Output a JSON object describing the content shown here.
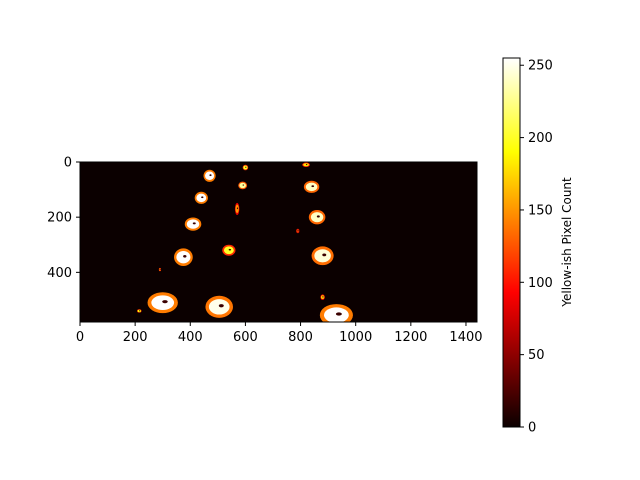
{
  "chart_data": {
    "type": "heatmap",
    "title": "",
    "xlabel": "",
    "ylabel": "",
    "xlim": [
      0,
      1440
    ],
    "ylim": [
      580,
      0
    ],
    "x_ticks": [
      "0",
      "200",
      "400",
      "600",
      "800",
      "1000",
      "1200",
      "1400"
    ],
    "y_ticks": [
      "0",
      "200",
      "400"
    ],
    "colormap": "hot",
    "background_color": "#0b0000",
    "colorbar": {
      "label": "Yellow-ish Pixel Count",
      "range": [
        0,
        255
      ],
      "ticks": [
        "0",
        "50",
        "100",
        "150",
        "200",
        "250"
      ]
    },
    "blobs": [
      {
        "x": 600,
        "y": 20,
        "rx": 10,
        "ry": 10,
        "value": 200
      },
      {
        "x": 820,
        "y": 10,
        "rx": 14,
        "ry": 8,
        "value": 180
      },
      {
        "x": 470,
        "y": 50,
        "rx": 22,
        "ry": 22,
        "value": 255
      },
      {
        "x": 590,
        "y": 85,
        "rx": 16,
        "ry": 14,
        "value": 230
      },
      {
        "x": 840,
        "y": 90,
        "rx": 28,
        "ry": 22,
        "value": 240
      },
      {
        "x": 440,
        "y": 130,
        "rx": 24,
        "ry": 22,
        "value": 255
      },
      {
        "x": 570,
        "y": 170,
        "rx": 8,
        "ry": 22,
        "value": 150
      },
      {
        "x": 860,
        "y": 200,
        "rx": 30,
        "ry": 26,
        "value": 240
      },
      {
        "x": 410,
        "y": 225,
        "rx": 30,
        "ry": 24,
        "value": 255
      },
      {
        "x": 790,
        "y": 250,
        "rx": 6,
        "ry": 8,
        "value": 120
      },
      {
        "x": 540,
        "y": 320,
        "rx": 24,
        "ry": 20,
        "value": 200
      },
      {
        "x": 880,
        "y": 340,
        "rx": 40,
        "ry": 34,
        "value": 245
      },
      {
        "x": 375,
        "y": 345,
        "rx": 34,
        "ry": 32,
        "value": 255
      },
      {
        "x": 290,
        "y": 390,
        "rx": 4,
        "ry": 6,
        "value": 160
      },
      {
        "x": 300,
        "y": 510,
        "rx": 55,
        "ry": 38,
        "value": 255
      },
      {
        "x": 505,
        "y": 525,
        "rx": 50,
        "ry": 40,
        "value": 250
      },
      {
        "x": 880,
        "y": 490,
        "rx": 8,
        "ry": 10,
        "value": 170
      },
      {
        "x": 930,
        "y": 555,
        "rx": 60,
        "ry": 40,
        "value": 255
      },
      {
        "x": 215,
        "y": 540,
        "rx": 8,
        "ry": 6,
        "value": 190
      }
    ]
  }
}
